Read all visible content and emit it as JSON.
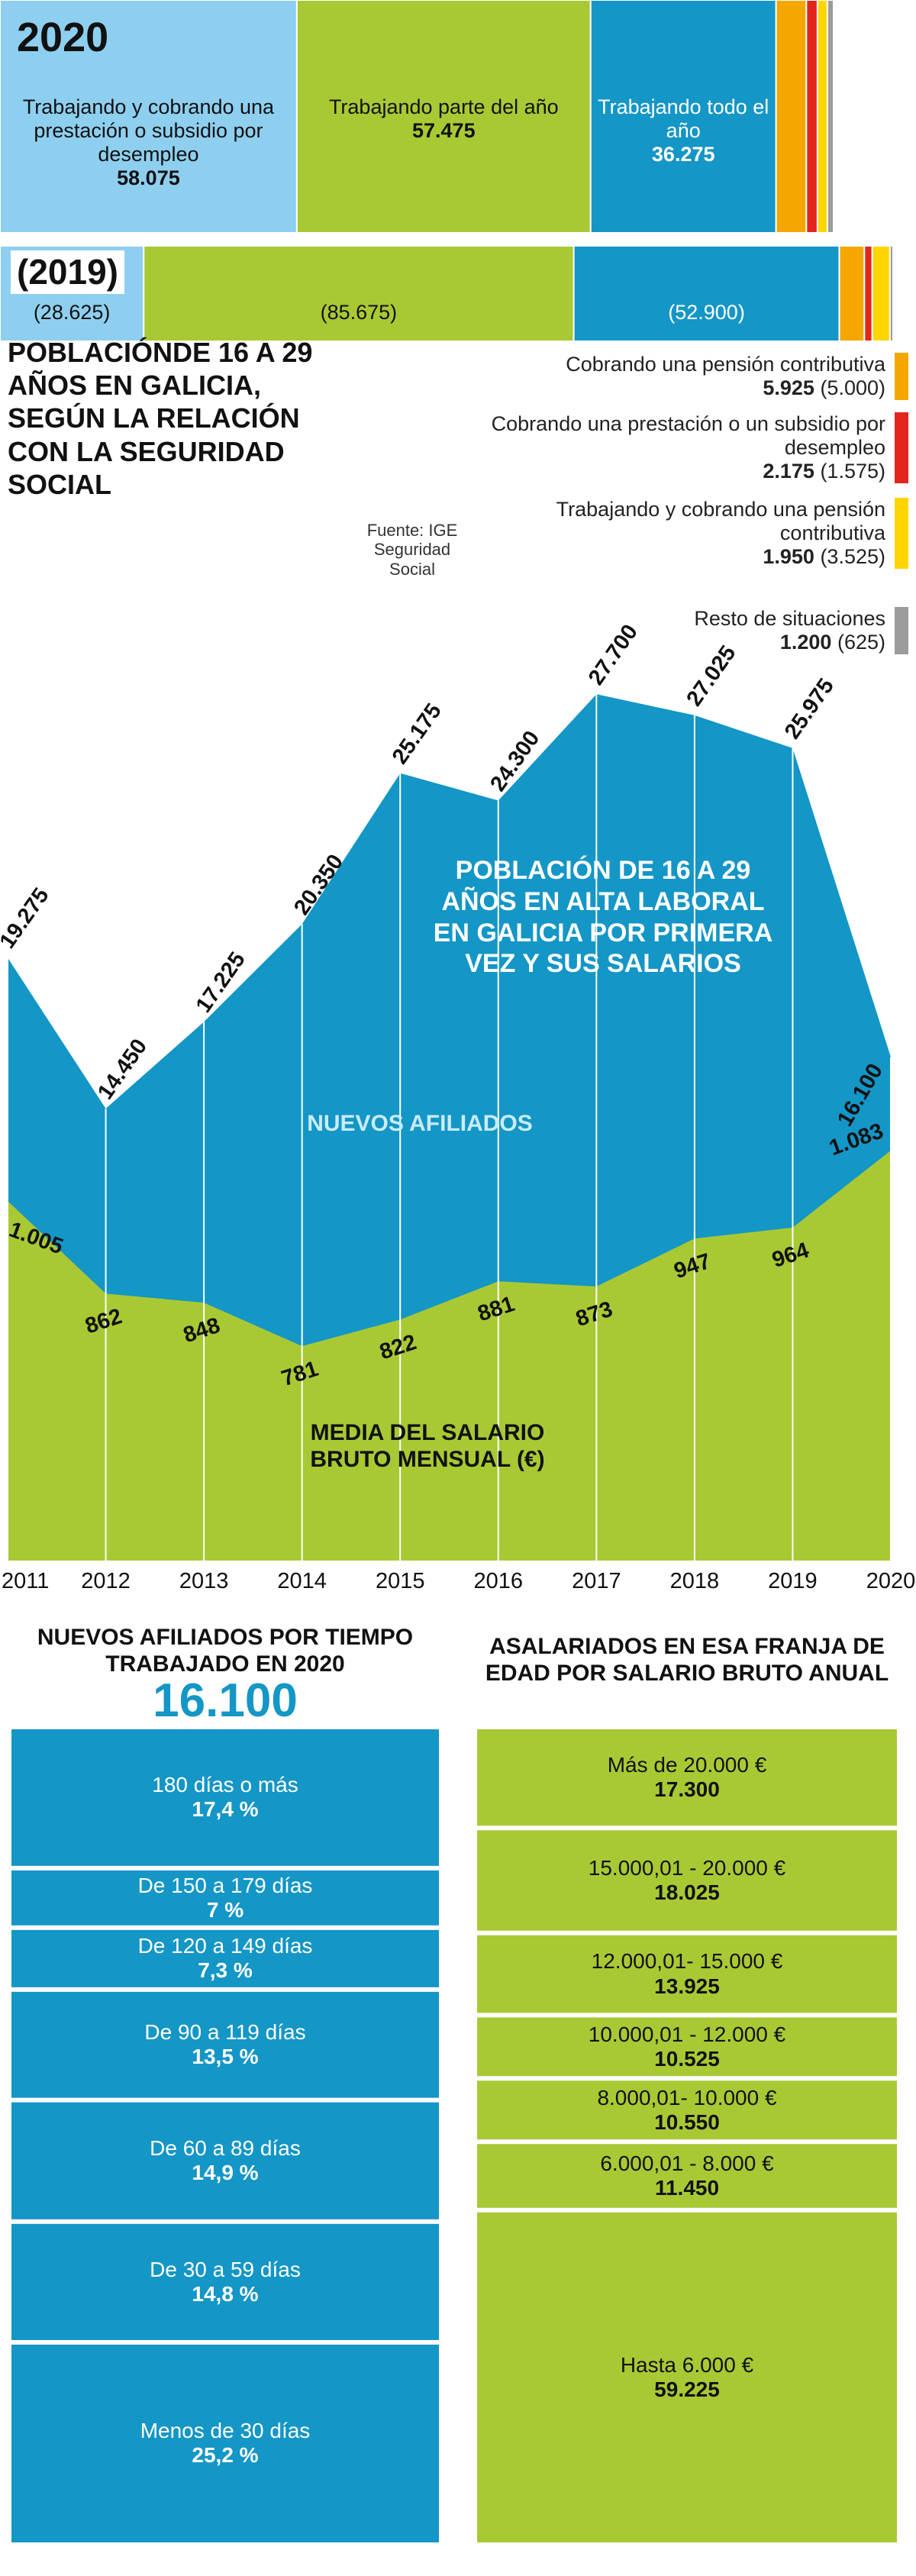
{
  "chart_data": [
    {
      "type": "stacked-bar",
      "title": "POBLACIÓNDE 16 A 29 AÑOS EN GALICIA, SEGÚN LA RELACIÓN CON LA SEGURIDAD SOCIAL",
      "source": "Fuente: IGE Seguridad Social",
      "categories": [
        "2020",
        "(2019)"
      ],
      "series": [
        {
          "name": "Trabajando y cobrando una prestación o subsidio por desempleo",
          "color": "#8ecff0",
          "values": [
            58075,
            28625
          ],
          "value_labels": [
            "58.075",
            "(28.625)"
          ]
        },
        {
          "name": "Trabajando parte del año",
          "color": "#a9c934",
          "values": [
            57475,
            85675
          ],
          "value_labels": [
            "57.475",
            "(85.675)"
          ]
        },
        {
          "name": "Trabajando todo el año",
          "color": "#1496c6",
          "values": [
            36275,
            52900
          ],
          "value_labels": [
            "36.275",
            "(52.900)"
          ]
        },
        {
          "name": "Cobrando una pensión contributiva",
          "color": "#f4a700",
          "values": [
            5925,
            5000
          ],
          "value_labels": [
            "5.925",
            "(5.000)"
          ]
        },
        {
          "name": "Cobrando una prestación o un subsidio por desempleo",
          "color": "#e3251b",
          "values": [
            2175,
            1575
          ],
          "value_labels": [
            "2.175",
            "(1.575)"
          ]
        },
        {
          "name": "Trabajando y cobrando una pensión contributiva",
          "color": "#ffd500",
          "values": [
            1950,
            3525
          ],
          "value_labels": [
            "1.950",
            "(3.525)"
          ]
        },
        {
          "name": "Resto de situaciones",
          "color": "#9b9b9b",
          "values": [
            1200,
            625
          ],
          "value_labels": [
            "1.200",
            "(625)"
          ]
        }
      ]
    },
    {
      "type": "area",
      "title": "POBLACIÓN DE 16 A 29 AÑOS EN ALTA LABORAL EN GALICIA POR PRIMERA VEZ Y SUS SALARIOS",
      "x": [
        2011,
        2012,
        2013,
        2014,
        2015,
        2016,
        2017,
        2018,
        2019,
        2020
      ],
      "ylim": [
        0,
        29000
      ],
      "y2lim": [
        450,
        1850
      ],
      "series": [
        {
          "name": "NUEVOS AFILIADOS",
          "color": "#1496c6",
          "values": [
            19275,
            14450,
            17225,
            20350,
            25175,
            24300,
            27700,
            27025,
            25975,
            16100
          ],
          "value_labels": [
            "19.275",
            "14.450",
            "17.225",
            "20.350",
            "25.175",
            "24.300",
            "27.700",
            "27.025",
            "25.975",
            "16.100"
          ]
        },
        {
          "name": "MEDIA DEL SALARIO BRUTO MENSUAL (€)",
          "color": "#a9c934",
          "axis": "y2",
          "values": [
            1005,
            862,
            848,
            781,
            822,
            881,
            873,
            947,
            964,
            1083
          ],
          "value_labels": [
            "1.005",
            "862",
            "848",
            "781",
            "822",
            "881",
            "873",
            "947",
            "964",
            "1.083"
          ]
        }
      ]
    },
    {
      "type": "stacked-column",
      "title": "NUEVOS AFILIADOS POR TIEMPO TRABAJADO EN 2020",
      "total": 16100,
      "total_label": "16.100",
      "color": "#1496c6",
      "categories": [
        "180 días o más",
        "De 150 a 179 días",
        "De 120 a 149 días",
        "De 90 a 119 días",
        "De 60 a 89 días",
        "De 30 a 59 días",
        "Menos de 30 días"
      ],
      "values": [
        17.4,
        7,
        7.3,
        13.5,
        14.9,
        14.8,
        25.2
      ],
      "value_labels": [
        "17,4 %",
        "7 %",
        "7,3 %",
        "13,5 %",
        "14,9 %",
        "14,8 %",
        "25,2 %"
      ]
    },
    {
      "type": "stacked-column",
      "title": "ASALARIADOS EN ESA FRANJA DE EDAD POR SALARIO BRUTO ANUAL",
      "color": "#a9c934",
      "categories": [
        "Más de 20.000 €",
        "15.000,01 - 20.000 €",
        "12.000,01- 15.000 €",
        "10.000,01 - 12.000 €",
        "8.000,01- 10.000 €",
        "6.000,01 - 8.000 €",
        "Hasta 6.000 €"
      ],
      "values": [
        17300,
        18025,
        13925,
        10525,
        10550,
        11450,
        59225
      ],
      "value_labels": [
        "17.300",
        "18.025",
        "13.925",
        "10.525",
        "10.550",
        "11.450",
        "59.225"
      ]
    }
  ]
}
